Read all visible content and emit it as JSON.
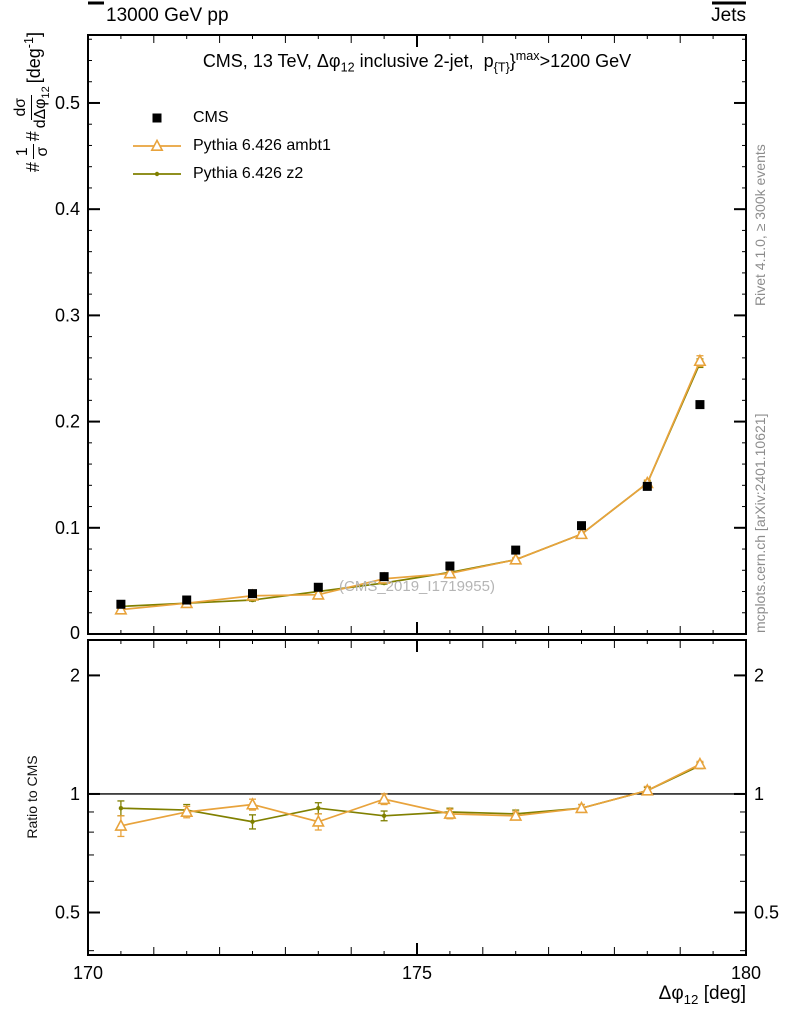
{
  "labels": {
    "header_left": "13000 GeV pp",
    "header_right": "Jets",
    "title": {
      "pre": "CMS, 13 TeV, ",
      "dphi": "Δφ",
      "dphi_sub": "12",
      "mid": " inclusive 2-jet,  p",
      "pt_sub": "{T}",
      "brace": "}",
      "sup": "max",
      "post": ">1200 GeV"
    },
    "ylabel": {
      "h1": "#",
      "num1": "1",
      "den1": "σ",
      "h2": "#",
      "num2": "dσ",
      "den2": "dΔφ",
      "den2_sub": "12",
      "unit_pre": " [deg",
      "unit_sup": "-1",
      "unit_post": "]"
    },
    "xlabel": {
      "base": "Δφ",
      "sub": "12",
      "unit": " [deg]"
    },
    "ratio_ylabel": "Ratio to CMS",
    "rivet_note": "Rivet 4.1.0, ≥ 300k events",
    "mcplots_note": "mcplots.cern.ch [arXiv:2401.10621]",
    "watermark": "(CMS_2019_I1719955)"
  },
  "chart_data": {
    "type": "line",
    "title": "CMS, 13 TeV, Δφ12 inclusive 2-jet, p_T^max>1200 GeV",
    "x": [
      170.5,
      171.5,
      172.5,
      173.5,
      174.5,
      175.5,
      176.5,
      177.5,
      178.5,
      179.3
    ],
    "xlim": [
      170,
      180
    ],
    "xticks": [
      170,
      175,
      180
    ],
    "xlabel": "Δφ12 [deg]",
    "main_panel": {
      "ylabel": "1/σ dσ/dΔφ12 [deg^-1]",
      "yscale": "linear",
      "ylim": [
        0,
        0.564
      ],
      "yticks": [
        0,
        0.1,
        0.2,
        0.3,
        0.4,
        0.5
      ],
      "series": [
        {
          "name": "CMS",
          "marker": "square",
          "color": "#000000",
          "line": false,
          "values": [
            0.028,
            0.032,
            0.038,
            0.044,
            0.054,
            0.064,
            0.079,
            0.102,
            0.139,
            0.216
          ]
        },
        {
          "name": "Pythia 6.426 ambt1",
          "marker": "triangle-open",
          "color": "#E8A33C",
          "line": true,
          "values": [
            0.023,
            0.029,
            0.036,
            0.037,
            0.052,
            0.057,
            0.07,
            0.094,
            0.142,
            0.257
          ],
          "errors": [
            0.002,
            0.001,
            0.001,
            0.002,
            0.002,
            0.002,
            0.002,
            0.002,
            0.003,
            0.005
          ]
        },
        {
          "name": "Pythia 6.426 z2",
          "marker": "dot",
          "color": "#808000",
          "line": true,
          "values": [
            0.026,
            0.029,
            0.032,
            0.04,
            0.048,
            0.058,
            0.07,
            0.094,
            0.142,
            0.255
          ],
          "errors": [
            0.001,
            0.001,
            0.001,
            0.001,
            0.001,
            0.001,
            0.001,
            0.002,
            0.002,
            0.004
          ]
        }
      ]
    },
    "ratio_panel": {
      "ylabel": "Ratio to CMS",
      "yscale": "log",
      "ylim": [
        0.39,
        2.46
      ],
      "yticks": [
        0.5,
        1,
        2
      ],
      "baseline": 1,
      "series": [
        {
          "name": "Pythia 6.426 ambt1",
          "marker": "triangle-open",
          "color": "#E8A33C",
          "values": [
            0.83,
            0.9,
            0.94,
            0.85,
            0.97,
            0.89,
            0.88,
            0.92,
            1.02,
            1.19
          ],
          "errors": [
            0.05,
            0.03,
            0.03,
            0.04,
            0.03,
            0.025,
            0.02,
            0.02,
            0.025,
            0.02
          ]
        },
        {
          "name": "Pythia 6.426 z2",
          "marker": "dot",
          "color": "#808000",
          "values": [
            0.92,
            0.91,
            0.85,
            0.92,
            0.88,
            0.9,
            0.89,
            0.92,
            1.02,
            1.18
          ],
          "errors": [
            0.04,
            0.03,
            0.035,
            0.03,
            0.025,
            0.02,
            0.02,
            0.02,
            0.02,
            0.02
          ]
        }
      ]
    }
  }
}
